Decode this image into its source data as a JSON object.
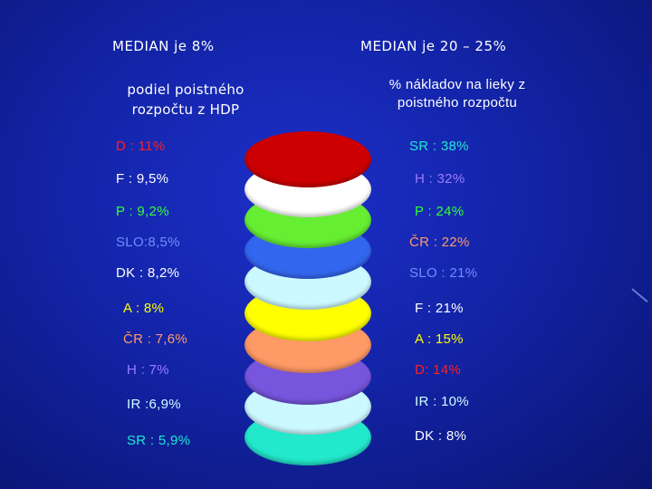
{
  "left": {
    "heading": "MEDIAN je 8%",
    "subtitle_line1": "podiel poistného",
    "subtitle_line2": "rozpočtu z HDP",
    "items": [
      {
        "text": "D : 11%",
        "color": "#ff2020"
      },
      {
        "text": "F : 9,5%",
        "color": "#ffffff"
      },
      {
        "text": "P : 9,2%",
        "color": "#33ff33"
      },
      {
        "text": "SLO:8,5%",
        "color": "#6f8dff"
      },
      {
        "text": "DK : 8,2%",
        "color": "#ffffff"
      },
      {
        "text": "A : 8%",
        "color": "#ffff00"
      },
      {
        "text": "ČR : 7,6%",
        "color": "#ff9966"
      },
      {
        "text": "H : 7%",
        "color": "#9a7cff"
      },
      {
        "text": "IR :6,9%",
        "color": "#cfffff"
      },
      {
        "text": "SR : 5,9%",
        "color": "#20e8d0"
      }
    ]
  },
  "right": {
    "heading": "MEDIAN je 20 – 25%",
    "subtitle_line1": "% nákladov na lieky z",
    "subtitle_line2": "poistného rozpočtu",
    "items": [
      {
        "text": "SR : 38%",
        "color": "#20e8d0"
      },
      {
        "text": "H : 32%",
        "color": "#9a7cff"
      },
      {
        "text": "P : 24%",
        "color": "#33ff33"
      },
      {
        "text": "ČR : 22%",
        "color": "#ff9966"
      },
      {
        "text": "SLO : 21%",
        "color": "#6f8dff"
      },
      {
        "text": "F : 21%",
        "color": "#ffffff"
      },
      {
        "text": "A : 15%",
        "color": "#ffff00"
      },
      {
        "text": "D: 14%",
        "color": "#ff2020"
      },
      {
        "text": "IR : 10%",
        "color": "#cfffff"
      },
      {
        "text": "DK : 8%",
        "color": "#ffffff"
      }
    ]
  },
  "discs": [
    {
      "name": "red-disc",
      "color": "#cc0000"
    },
    {
      "name": "white-disc",
      "color": "#ffffff"
    },
    {
      "name": "green-disc",
      "color": "#66ee33"
    },
    {
      "name": "blue-disc",
      "color": "#3366ee"
    },
    {
      "name": "lightcyan-disc",
      "color": "#ccf8ff"
    },
    {
      "name": "yellow-disc",
      "color": "#ffff00"
    },
    {
      "name": "salmon-disc",
      "color": "#ff9966"
    },
    {
      "name": "purple-disc",
      "color": "#7755dd"
    },
    {
      "name": "paleblue-disc",
      "color": "#ccf8ff"
    },
    {
      "name": "turquoise-disc",
      "color": "#22e8cc"
    }
  ]
}
